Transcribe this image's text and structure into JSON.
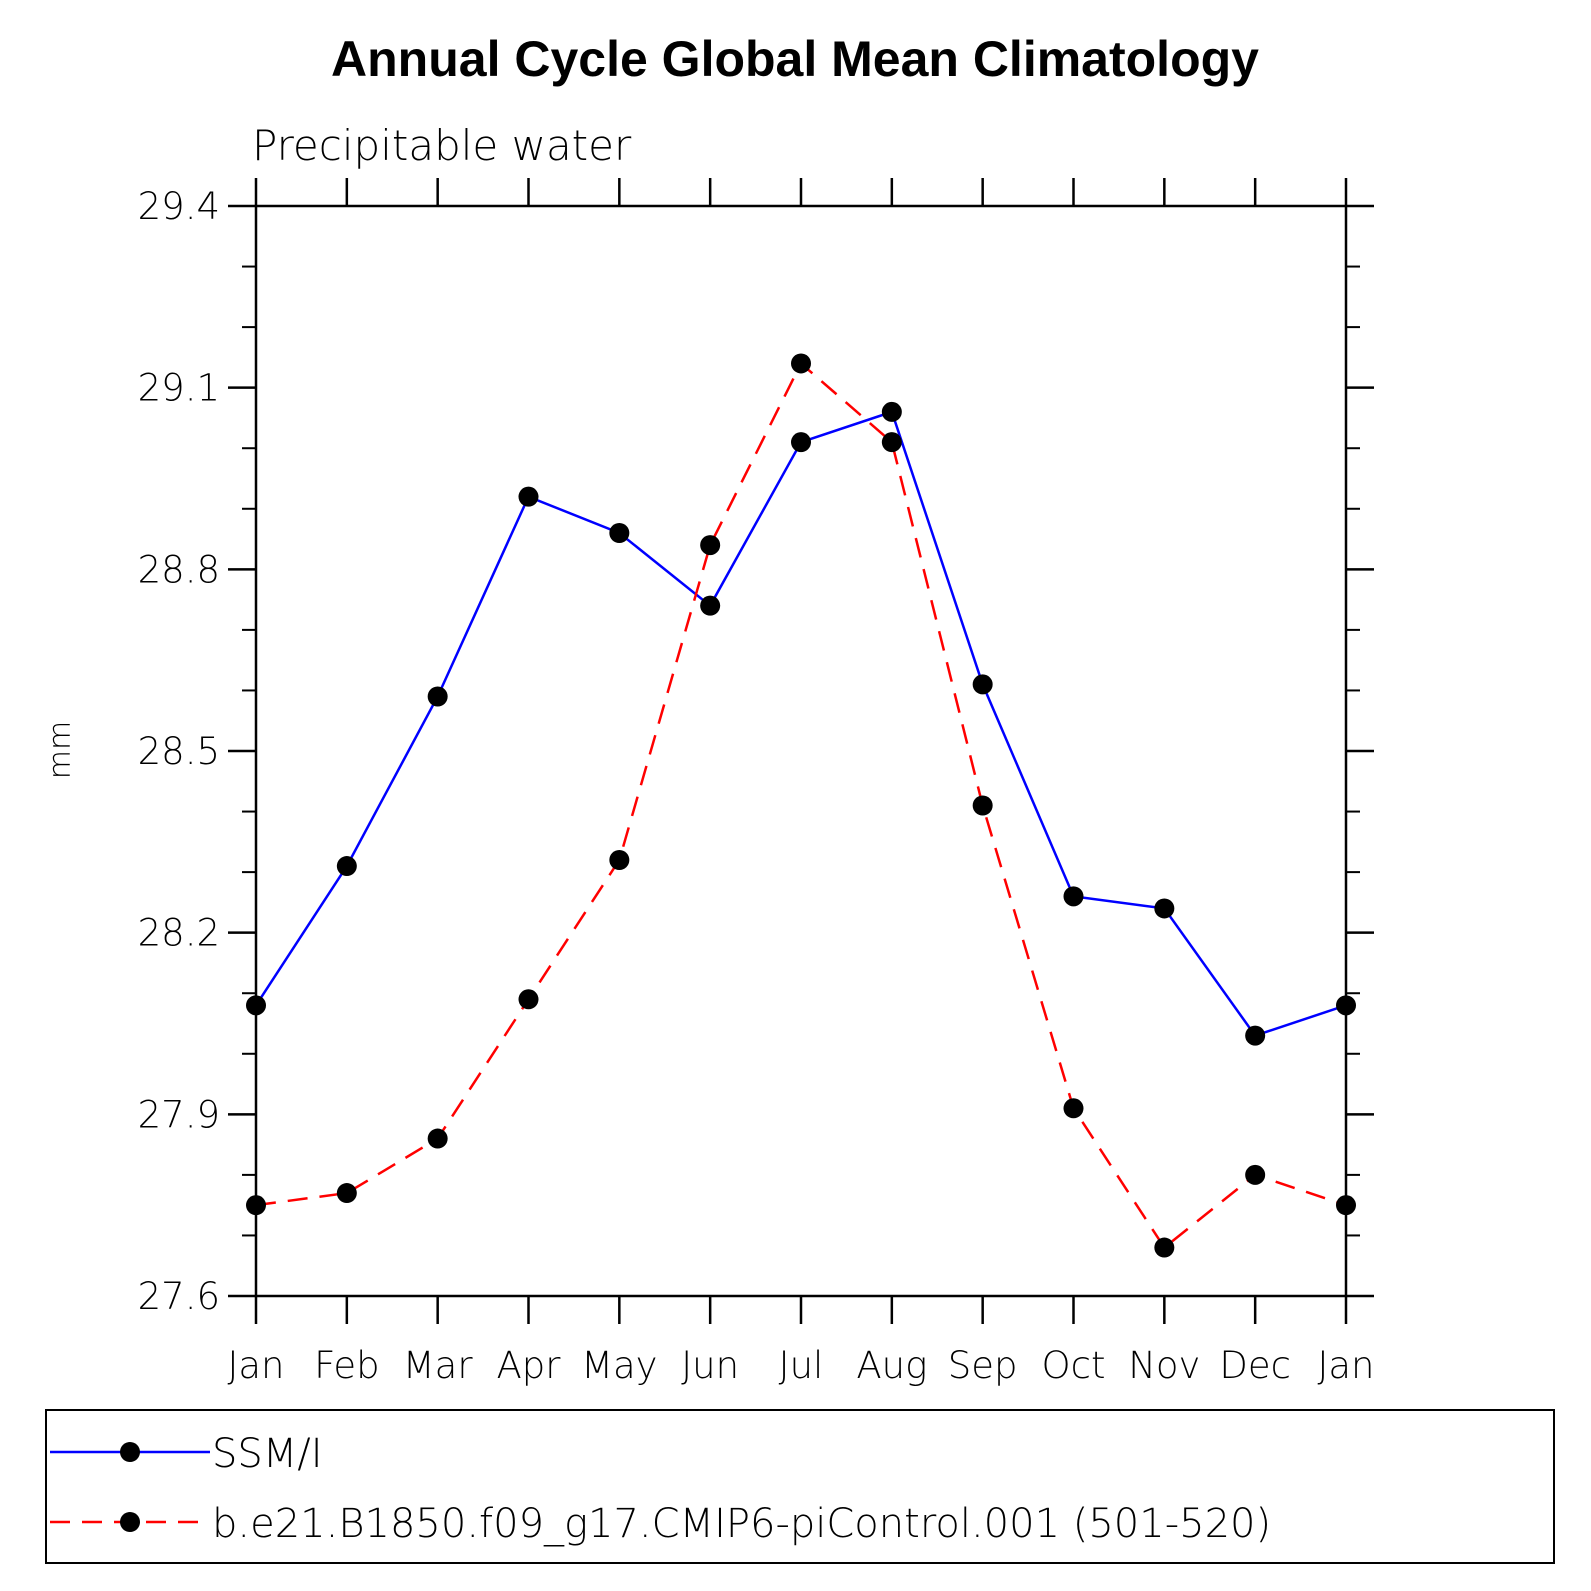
{
  "chart_data": {
    "type": "line",
    "title": "Annual Cycle Global Mean Climatology",
    "subtitle": "Precipitable water",
    "xlabel": "",
    "ylabel": "mm",
    "categories": [
      "Jan",
      "Feb",
      "Mar",
      "Apr",
      "May",
      "Jun",
      "Jul",
      "Aug",
      "Sep",
      "Oct",
      "Nov",
      "Dec",
      "Jan"
    ],
    "ylim": [
      27.6,
      29.4
    ],
    "yticks": [
      "27.6",
      "27.9",
      "28.2",
      "28.5",
      "28.8",
      "29.1",
      "29.4"
    ],
    "series": [
      {
        "name": "SSM/I",
        "color": "#0000ff",
        "dash": "solid",
        "marker": "filled-circle",
        "values": [
          28.08,
          28.31,
          28.59,
          28.92,
          28.86,
          28.74,
          29.01,
          29.06,
          28.61,
          28.26,
          28.24,
          28.03,
          28.08
        ]
      },
      {
        "name": "b.e21.B1850.f09_g17.CMIP6-piControl.001 (501-520)",
        "color": "#ff0000",
        "dash": "dashed",
        "marker": "filled-circle",
        "values": [
          27.75,
          27.77,
          27.86,
          28.09,
          28.32,
          28.84,
          29.14,
          29.01,
          28.41,
          27.91,
          27.68,
          27.8,
          27.75
        ]
      }
    ],
    "legend_position": "bottom"
  }
}
